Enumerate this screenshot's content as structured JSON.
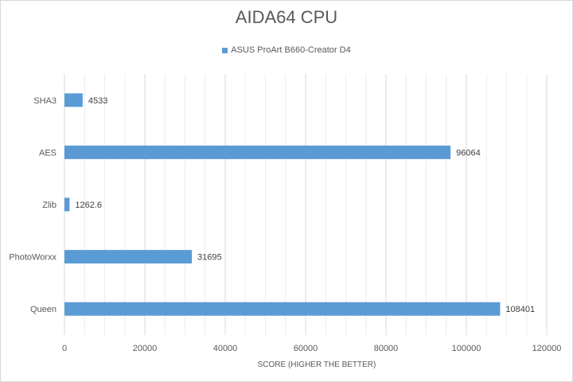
{
  "chart_data": {
    "type": "bar",
    "orientation": "horizontal",
    "title": "AIDA64 CPU",
    "xlabel": "SCORE (HIGHER THE BETTER)",
    "ylabel": "",
    "categories": [
      "SHA3",
      "AES",
      "Zlib",
      "PhotoWorxx",
      "Queen"
    ],
    "series": [
      {
        "name": "ASUS ProArt B660-Creator D4",
        "values": [
          4533,
          96064,
          1262.6,
          31695,
          108401
        ],
        "labels": [
          "4533",
          "96064",
          "1262.6",
          "31695",
          "108401"
        ],
        "color": "#5b9bd5"
      }
    ],
    "xlim": [
      0,
      120000
    ],
    "xticks": [
      0,
      20000,
      40000,
      60000,
      80000,
      100000,
      120000
    ],
    "grid": true,
    "legend_position": "top"
  }
}
